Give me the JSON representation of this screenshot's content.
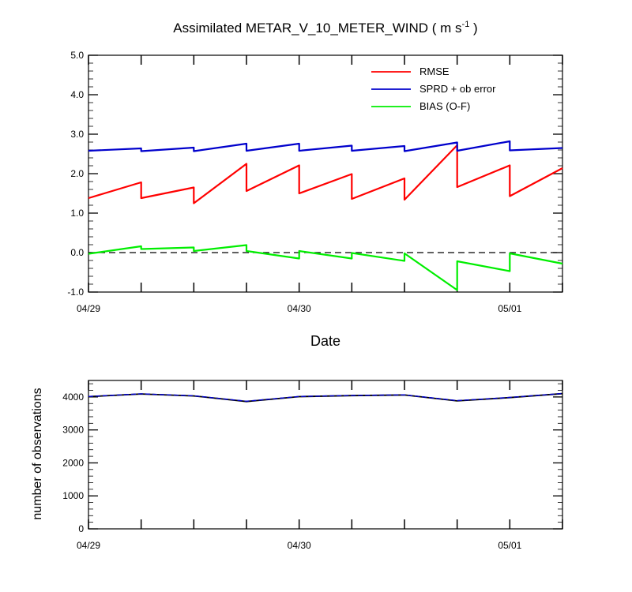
{
  "title": {
    "main": "Assimilated METAR_V_10_METER_WIND ( m s",
    "sup": "-1",
    "close": " )"
  },
  "colors": {
    "rmse": "#ff0000",
    "spread": "#0000cc",
    "bias": "#00ee00",
    "zero_line": "#000000",
    "obs_used": "#000000",
    "obs_possible": "#0000cc"
  },
  "chart_data": [
    {
      "type": "line",
      "title": "Assimilated METAR_V_10_METER_WIND ( m s-1 )",
      "xlabel": "Date",
      "ylabel": "",
      "x_range": [
        0,
        1.125
      ],
      "ylim": [
        -1.0,
        5.0
      ],
      "yticks": [
        -1.0,
        0.0,
        1.0,
        2.0,
        3.0,
        4.0,
        5.0
      ],
      "ytick_labels": [
        "-1.0",
        "0.0",
        "1.0",
        "2.0",
        "3.0",
        "4.0",
        "5.0"
      ],
      "xticks": [
        0,
        1,
        2
      ],
      "xtick_labels": [
        "04/29",
        "04/30",
        "05/01"
      ],
      "legend_position": "top-right",
      "series": [
        {
          "name": "RMSE",
          "x": [
            0,
            0.125,
            0.125,
            0.25,
            0.25,
            0.375,
            0.375,
            0.5,
            0.5,
            0.625,
            0.625,
            0.75,
            0.75,
            0.875,
            0.875,
            1.0,
            1.0,
            1.125
          ],
          "y": [
            1.38,
            1.78,
            1.38,
            1.65,
            1.25,
            2.25,
            1.56,
            2.21,
            1.5,
            1.99,
            1.36,
            1.88,
            1.34,
            2.72,
            1.66,
            2.21,
            1.43,
            2.14
          ]
        },
        {
          "name": "SPRD + ob error",
          "x": [
            0,
            0.125,
            0.125,
            0.25,
            0.25,
            0.375,
            0.375,
            0.5,
            0.5,
            0.625,
            0.625,
            0.75,
            0.75,
            0.875,
            0.875,
            1.0,
            1.0,
            1.125
          ],
          "y": [
            2.58,
            2.64,
            2.57,
            2.66,
            2.57,
            2.76,
            2.58,
            2.76,
            2.58,
            2.71,
            2.58,
            2.7,
            2.57,
            2.79,
            2.58,
            2.82,
            2.59,
            2.65
          ]
        },
        {
          "name": "BIAS (O-F)",
          "x": [
            0,
            0.125,
            0.125,
            0.25,
            0.25,
            0.375,
            0.375,
            0.5,
            0.5,
            0.625,
            0.625,
            0.75,
            0.75,
            0.875,
            0.875,
            1.0,
            1.0,
            1.125
          ],
          "y": [
            -0.03,
            0.16,
            0.09,
            0.13,
            0.04,
            0.19,
            0.04,
            -0.15,
            0.04,
            -0.15,
            -0.01,
            -0.21,
            -0.02,
            -0.95,
            -0.22,
            -0.47,
            -0.02,
            -0.28
          ]
        }
      ],
      "reference_line": {
        "y": 0.0,
        "style": "dashed"
      }
    },
    {
      "type": "line",
      "title": "",
      "xlabel": "",
      "ylabel": "number of observations",
      "x_range": [
        0,
        1.125
      ],
      "ylim": [
        0,
        4500
      ],
      "yticks": [
        0,
        1000,
        2000,
        3000,
        4000
      ],
      "ytick_labels": [
        "0",
        "1000",
        "2000",
        "3000",
        "4000"
      ],
      "xticks": [
        0,
        1,
        2
      ],
      "xtick_labels": [
        "04/29",
        "04/30",
        "05/01"
      ],
      "series": [
        {
          "x": [
            0,
            0.125,
            0.25,
            0.375,
            0.5,
            0.625,
            0.75,
            0.875,
            1.0,
            1.125
          ],
          "y": [
            4010,
            4090,
            4030,
            3860,
            4010,
            4040,
            4060,
            3880,
            3980,
            4100
          ]
        },
        {
          "x": [
            0,
            0.125,
            0.25,
            0.375,
            0.5,
            0.625,
            0.75,
            0.875,
            1.0,
            1.125
          ],
          "y": [
            4015,
            4095,
            4035,
            3870,
            4015,
            4045,
            4065,
            3890,
            3985,
            4105
          ]
        }
      ]
    }
  ]
}
